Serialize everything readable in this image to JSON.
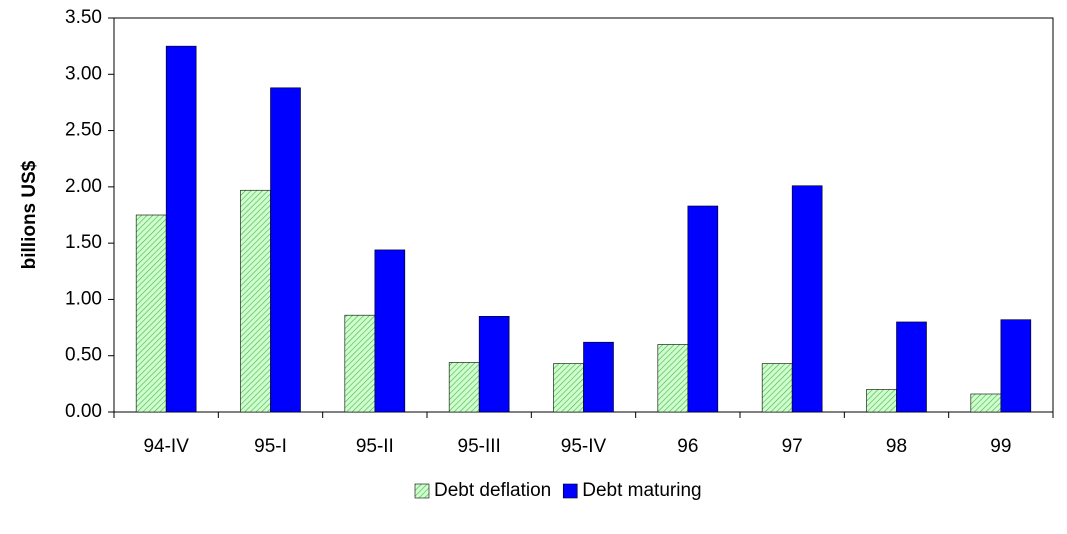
{
  "chart_data": {
    "type": "bar",
    "y_label": "billions US$",
    "categories": [
      "94-IV",
      "95-I",
      "95-II",
      "95-III",
      "95-IV",
      "96",
      "97",
      "98",
      "99"
    ],
    "series": [
      {
        "name": "Debt deflation",
        "color": "#ccffcc",
        "pattern": "hatch",
        "values": [
          1.75,
          1.97,
          0.86,
          0.44,
          0.43,
          0.6,
          0.43,
          0.2,
          0.16
        ]
      },
      {
        "name": "Debt maturing",
        "color": "#0000ff",
        "values": [
          3.25,
          2.88,
          1.44,
          0.85,
          0.62,
          1.83,
          2.01,
          0.8,
          0.82
        ]
      }
    ],
    "ylim": [
      0,
      3.5
    ],
    "yticks": [
      {
        "value": 0,
        "label": "0.00"
      },
      {
        "value": 0.5,
        "label": "0.50"
      },
      {
        "value": 1,
        "label": "1.00"
      },
      {
        "value": 1.5,
        "label": "1.50"
      },
      {
        "value": 2,
        "label": "2.00"
      },
      {
        "value": 2.5,
        "label": "2.50"
      },
      {
        "value": 3,
        "label": "3.00"
      },
      {
        "value": 3.5,
        "label": "3.50"
      }
    ],
    "grid": false,
    "legend": "bottom"
  }
}
